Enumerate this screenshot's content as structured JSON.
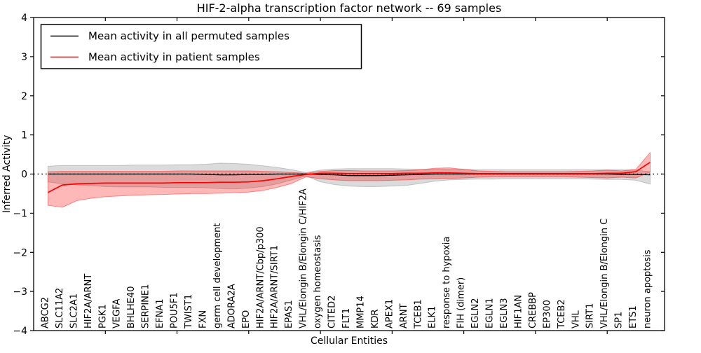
{
  "chart_data": {
    "type": "line",
    "title": "HIF-2-alpha transcription factor network -- 69 samples",
    "xlabel": "Cellular Entities",
    "ylabel": "Inferred Activity",
    "xlim": [
      0,
      44
    ],
    "ylim": [
      -4,
      4
    ],
    "grid": false,
    "legend_position": "upper left",
    "ytick_values": [
      -4,
      -3,
      -2,
      -1,
      0,
      1,
      2,
      3,
      4
    ],
    "ytick_labels": [
      "−4",
      "−3",
      "−2",
      "−1",
      "0",
      "1",
      "2",
      "3",
      "4"
    ],
    "xtick_values": [
      5,
      10,
      15,
      20,
      25,
      30,
      35,
      40
    ],
    "zero_line": {
      "y": 0,
      "style": "dotted",
      "color": "#000000"
    },
    "categories": [
      "ABCG2",
      "SLC11A2",
      "SLC2A1",
      "HIF2A/ARNT",
      "PGK1",
      "VEGFA",
      "BHLHE40",
      "SERPINE1",
      "EFNA1",
      "POU5F1",
      "TWIST1",
      "FXN",
      "germ cell development",
      "ADORA2A",
      "EPO",
      "HIF2A/ARNT/Cbp/p300",
      "HIF2A/ARNT/SIRT1",
      "EPAS1",
      "VHL/Elongin B/Elongin C/HIF2A",
      "oxygen homeostasis",
      "CITED2",
      "FLT1",
      "MMP14",
      "KDR",
      "APEX1",
      "ARNT",
      "TCEB1",
      "ELK1",
      "response to hypoxia",
      "FIH (dimer)",
      "EGLN2",
      "EGLN1",
      "EGLN3",
      "HIF1AN",
      "CREBBP",
      "EP300",
      "TCEB2",
      "VHL",
      "SIRT1",
      "VHL/Elongin B/Elongin C",
      "SP1",
      "ETS1",
      "neuron apoptosis"
    ],
    "series": [
      {
        "name": "Mean activity in all permuted samples",
        "color": "#000000",
        "line_width": 1.3,
        "band_fill": "rgba(0,0,0,0.14)",
        "band_edge": "rgba(0,0,0,0.18)",
        "values": [
          0,
          0,
          0,
          0,
          0,
          0,
          0,
          0,
          0,
          0,
          0,
          -0.01,
          -0.02,
          -0.02,
          -0.01,
          -0.01,
          0,
          0,
          0,
          -0.01,
          -0.02,
          -0.04,
          -0.04,
          -0.04,
          -0.03,
          -0.02,
          -0.01,
          0,
          0,
          0,
          0,
          0,
          0,
          0,
          0,
          0,
          0,
          0,
          0,
          0,
          -0.01,
          -0.01,
          -0.02
        ],
        "band_upper": [
          0.2,
          0.22,
          0.22,
          0.22,
          0.22,
          0.22,
          0.23,
          0.23,
          0.23,
          0.24,
          0.24,
          0.25,
          0.28,
          0.27,
          0.25,
          0.21,
          0.17,
          0.11,
          0.04,
          0.1,
          0.13,
          0.14,
          0.14,
          0.14,
          0.14,
          0.13,
          0.12,
          0.12,
          0.12,
          0.12,
          0.11,
          0.11,
          0.11,
          0.11,
          0.11,
          0.11,
          0.11,
          0.11,
          0.11,
          0.11,
          0.11,
          0.1,
          0.06
        ],
        "band_lower": [
          -0.2,
          -0.25,
          -0.28,
          -0.3,
          -0.32,
          -0.33,
          -0.33,
          -0.33,
          -0.34,
          -0.34,
          -0.34,
          -0.35,
          -0.37,
          -0.38,
          -0.36,
          -0.32,
          -0.25,
          -0.15,
          -0.05,
          -0.2,
          -0.27,
          -0.31,
          -0.32,
          -0.32,
          -0.31,
          -0.29,
          -0.24,
          -0.18,
          -0.15,
          -0.14,
          -0.13,
          -0.13,
          -0.12,
          -0.12,
          -0.12,
          -0.12,
          -0.12,
          -0.12,
          -0.13,
          -0.14,
          -0.14,
          -0.16,
          -0.26
        ]
      },
      {
        "name": "Mean activity in patient samples",
        "color": "#ff0000",
        "line_width": 1.7,
        "band_fill": "rgba(255,0,0,0.28)",
        "band_edge": "rgba(255,0,0,0.40)",
        "values": [
          -0.47,
          -0.28,
          -0.25,
          -0.24,
          -0.23,
          -0.23,
          -0.23,
          -0.23,
          -0.23,
          -0.22,
          -0.22,
          -0.22,
          -0.21,
          -0.21,
          -0.2,
          -0.17,
          -0.12,
          -0.06,
          -0.01,
          0.02,
          0.02,
          0.01,
          0.01,
          0.01,
          0.01,
          0.02,
          0.02,
          0.03,
          0.03,
          0.02,
          0.01,
          0.01,
          0.01,
          0.01,
          0.01,
          0.01,
          0.01,
          0.01,
          0.01,
          0.02,
          0.02,
          0.06,
          0.3
        ],
        "band_upper": [
          0.06,
          0.07,
          0.07,
          0.07,
          0.07,
          0.07,
          0.07,
          0.07,
          0.07,
          0.08,
          0.08,
          0.08,
          0.08,
          0.08,
          0.08,
          0.07,
          0.06,
          0.04,
          0.02,
          0.07,
          0.09,
          0.09,
          0.08,
          0.08,
          0.08,
          0.09,
          0.11,
          0.15,
          0.16,
          0.12,
          0.08,
          0.07,
          0.06,
          0.06,
          0.06,
          0.06,
          0.06,
          0.07,
          0.08,
          0.1,
          0.08,
          0.12,
          0.55
        ],
        "band_lower": [
          -0.8,
          -0.85,
          -0.68,
          -0.62,
          -0.58,
          -0.56,
          -0.54,
          -0.53,
          -0.52,
          -0.51,
          -0.5,
          -0.5,
          -0.49,
          -0.48,
          -0.46,
          -0.42,
          -0.34,
          -0.24,
          -0.07,
          -0.12,
          -0.15,
          -0.17,
          -0.17,
          -0.17,
          -0.16,
          -0.15,
          -0.13,
          -0.12,
          -0.11,
          -0.1,
          -0.08,
          -0.07,
          -0.07,
          -0.07,
          -0.07,
          -0.07,
          -0.07,
          -0.08,
          -0.09,
          -0.1,
          -0.08,
          -0.1,
          0.05
        ]
      }
    ]
  }
}
